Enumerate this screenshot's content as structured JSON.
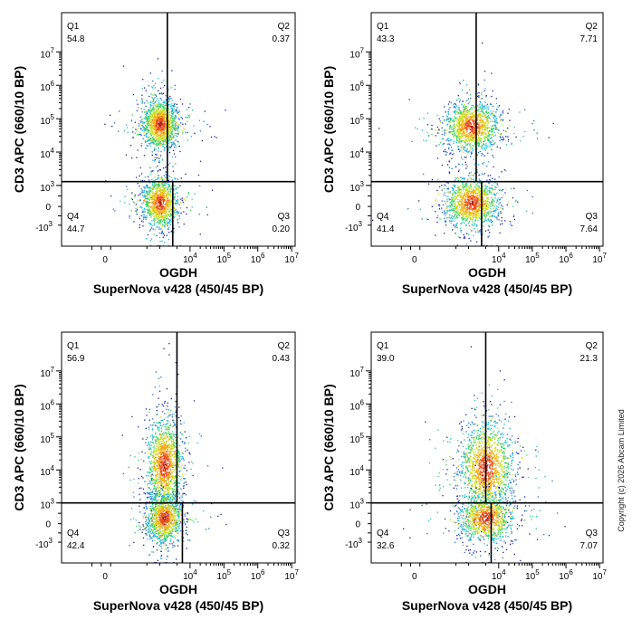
{
  "chart_data": [
    {
      "type": "scatter",
      "subtype": "flow-cytometry-density-dot-plot",
      "xlabel": "OGDH",
      "xlabel2": "SuperNova v428 (450/45 BP)",
      "ylabel": "CD3 APC (660/10 BP)",
      "x_tick_labels": [
        "0",
        "10^4",
        "10^5",
        "10^6",
        "10^7"
      ],
      "y_tick_labels": [
        "-10^3",
        "0",
        "10^3",
        "10^4",
        "10^5",
        "10^6",
        "10^7"
      ],
      "gate": {
        "x": 3000,
        "y": 1300
      },
      "quadrants": [
        {
          "name": "Q1",
          "percent": "54.8"
        },
        {
          "name": "Q2",
          "percent": "0.37"
        },
        {
          "name": "Q3",
          "percent": "0.20"
        },
        {
          "name": "Q4",
          "percent": "44.7"
        }
      ],
      "populations": [
        {
          "x_center": 2000,
          "y_center": 70000,
          "share": 0.55
        },
        {
          "x_center": 2000,
          "y_center": 200,
          "share": 0.45
        }
      ]
    },
    {
      "type": "scatter",
      "subtype": "flow-cytometry-density-dot-plot",
      "xlabel": "OGDH",
      "xlabel2": "SuperNova v428 (450/45 BP)",
      "ylabel": "CD3 APC (660/10 BP)",
      "x_tick_labels": [
        "0",
        "10^4",
        "10^5",
        "10^6",
        "10^7"
      ],
      "y_tick_labels": [
        "-10^3",
        "0",
        "10^3",
        "10^4",
        "10^5",
        "10^6",
        "10^7"
      ],
      "gate": {
        "x": 3000,
        "y": 1300
      },
      "quadrants": [
        {
          "name": "Q1",
          "percent": "43.3"
        },
        {
          "name": "Q2",
          "percent": "7.71"
        },
        {
          "name": "Q3",
          "percent": "7.64"
        },
        {
          "name": "Q4",
          "percent": "41.4"
        }
      ],
      "populations": [
        {
          "x_center": 2300,
          "y_center": 60000,
          "share": 0.51
        },
        {
          "x_center": 2300,
          "y_center": 200,
          "share": 0.49
        }
      ]
    },
    {
      "type": "scatter",
      "subtype": "flow-cytometry-density-dot-plot",
      "xlabel": "OGDH",
      "xlabel2": "SuperNova v428 (450/45 BP)",
      "ylabel": "CD3 APC (660/10 BP)",
      "x_tick_labels": [
        "0",
        "10^4",
        "10^5",
        "10^6",
        "10^7"
      ],
      "y_tick_labels": [
        "-10^3",
        "0",
        "10^3",
        "10^4",
        "10^5",
        "10^6",
        "10^7"
      ],
      "gate": {
        "x": 5000,
        "y": 1000
      },
      "quadrants": [
        {
          "name": "Q1",
          "percent": "56.9"
        },
        {
          "name": "Q2",
          "percent": "0.43"
        },
        {
          "name": "Q3",
          "percent": "0.32"
        },
        {
          "name": "Q4",
          "percent": "42.4"
        }
      ],
      "populations": [
        {
          "x_center": 2500,
          "y_center": 15000,
          "share": 0.57
        },
        {
          "x_center": 2500,
          "y_center": 300,
          "share": 0.43
        }
      ]
    },
    {
      "type": "scatter",
      "subtype": "flow-cytometry-density-dot-plot",
      "xlabel": "OGDH",
      "xlabel2": "SuperNova v428 (450/45 BP)",
      "ylabel": "CD3 APC (660/10 BP)",
      "x_tick_labels": [
        "0",
        "10^4",
        "10^5",
        "10^6",
        "10^7"
      ],
      "y_tick_labels": [
        "-10^3",
        "0",
        "10^3",
        "10^4",
        "10^5",
        "10^6",
        "10^7"
      ],
      "gate": {
        "x": 5000,
        "y": 1000
      },
      "quadrants": [
        {
          "name": "Q1",
          "percent": "39.0"
        },
        {
          "name": "Q2",
          "percent": "21.3"
        },
        {
          "name": "Q3",
          "percent": "7.07"
        },
        {
          "name": "Q4",
          "percent": "32.6"
        }
      ],
      "populations": [
        {
          "x_center": 5000,
          "y_center": 12000,
          "share": 0.6
        },
        {
          "x_center": 5000,
          "y_center": 300,
          "share": 0.4
        }
      ]
    }
  ],
  "copyright": "Copyright (c) 2026 Abcam Limited",
  "colors": {
    "density": [
      "#1a1aaa",
      "#1e6fd8",
      "#19b6d6",
      "#3cd06a",
      "#c8e02a",
      "#f2b21a",
      "#e8501a",
      "#b41414"
    ],
    "axis": "#000000"
  }
}
